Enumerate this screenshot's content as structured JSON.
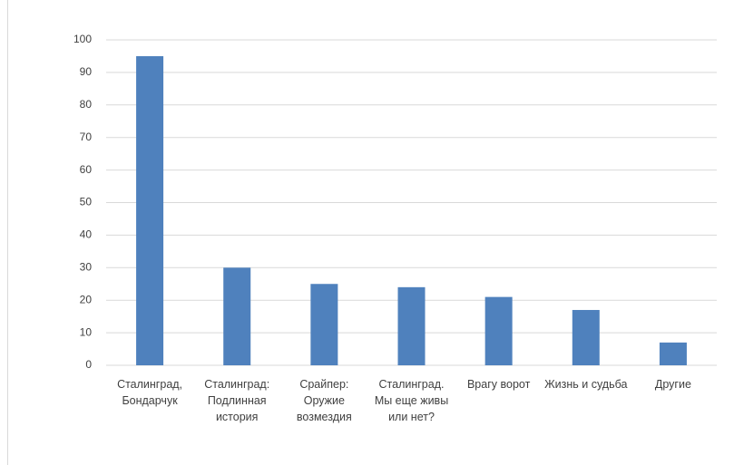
{
  "chart_data": {
    "type": "bar",
    "categories": [
      "Сталинград, Бондарчук",
      "Сталинград: Подлинная история",
      "Срайпер: Оружие возмездия",
      "Сталинград. Мы еще живы или нет?",
      "Врагу ворот",
      "Жизнь и судьба",
      "Другие"
    ],
    "values": [
      95,
      30,
      25,
      24,
      21,
      17,
      7
    ],
    "color": "#4f81bd",
    "ylim": [
      0,
      100
    ],
    "yticks": [
      0,
      10,
      20,
      30,
      40,
      50,
      60,
      70,
      80,
      90,
      100
    ],
    "grid": true
  }
}
